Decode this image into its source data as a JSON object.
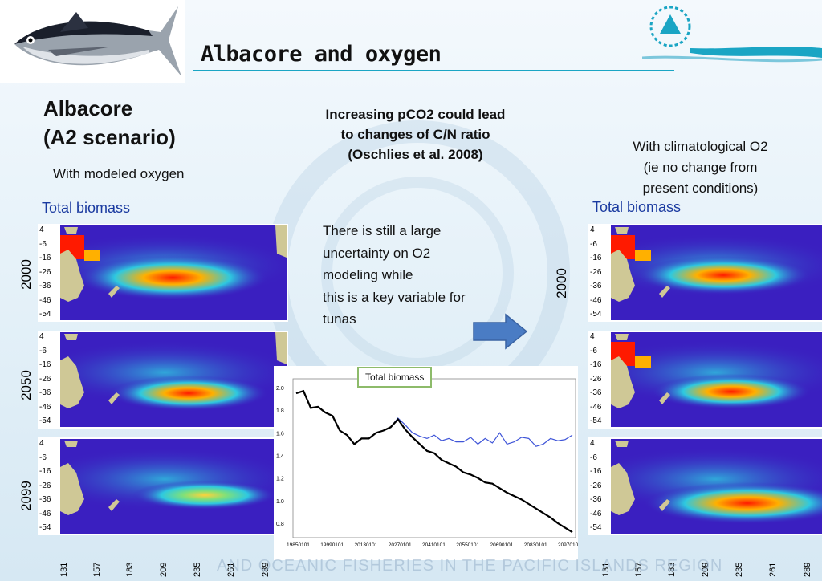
{
  "title": "Albacore and oxygen",
  "left": {
    "heading_line1": "Albacore",
    "heading_line2": "(A2 scenario)",
    "subtitle": "With modeled oxygen",
    "panel_label": "Total biomass",
    "years": [
      "2000",
      "2050",
      "2099"
    ]
  },
  "center": {
    "note_line1": "Increasing  pCO2 could lead",
    "note_line2": "to changes of C/N ratio",
    "note_line3": "(Oschlies et al. 2008)",
    "uncertainty_line1": "There is still a large",
    "uncertainty_line2": "uncertainty on O2",
    "uncertainty_line3": "modeling while",
    "uncertainty_line4": "this is a key variable for",
    "uncertainty_line5": "tunas"
  },
  "right": {
    "subtitle_line1": "With climatological O2",
    "subtitle_line2": "(ie no change from",
    "subtitle_line3": "present conditions)",
    "panel_label": "Total biomass",
    "years": [
      "2000"
    ]
  },
  "map_axes": {
    "y_ticks": [
      "4",
      "-6",
      "-16",
      "-26",
      "-36",
      "-46",
      "-54"
    ],
    "x_ticks": [
      "131",
      "157",
      "183",
      "209",
      "235",
      "261",
      "289"
    ]
  },
  "footer_text": "AND OCEANIC FISHERIES IN THE PACIFIC ISLANDS REGION",
  "colors": {
    "arrow": "#4a7cc4",
    "land": "#cfc896",
    "ocean_low": "#3a1fc0",
    "series_modeled": "#000000",
    "series_climatological": "#3f55d8"
  },
  "chart_data": {
    "type": "line",
    "legend_box": "Total biomass",
    "ylim": [
      0.7,
      2.05
    ],
    "yticks": [
      "2.0",
      "1.8",
      "1.6",
      "1.4",
      "1.2",
      "1.0",
      "0.8"
    ],
    "xticks": [
      "19850101",
      "19990101",
      "20130101",
      "20270101",
      "20410101",
      "20550101",
      "20690101",
      "20830101",
      "20970101"
    ],
    "x": [
      1985,
      1988,
      1991,
      1994,
      1997,
      2000,
      2003,
      2006,
      2009,
      2012,
      2015,
      2018,
      2021,
      2024,
      2027,
      2030,
      2033,
      2036,
      2039,
      2042,
      2045,
      2048,
      2051,
      2054,
      2057,
      2060,
      2063,
      2066,
      2069,
      2072,
      2075,
      2078,
      2081,
      2084,
      2087,
      2090,
      2093,
      2096,
      2099
    ],
    "series": [
      {
        "color": "#000000",
        "values": [
          1.95,
          1.97,
          1.82,
          1.83,
          1.78,
          1.75,
          1.62,
          1.58,
          1.5,
          1.55,
          1.55,
          1.6,
          1.62,
          1.65,
          1.72,
          1.63,
          1.56,
          1.5,
          1.44,
          1.42,
          1.36,
          1.33,
          1.3,
          1.25,
          1.23,
          1.2,
          1.16,
          1.15,
          1.11,
          1.07,
          1.04,
          1.01,
          0.97,
          0.93,
          0.89,
          0.85,
          0.8,
          0.76,
          0.72
        ]
      },
      {
        "color": "#3f55d8",
        "values": [
          1.95,
          1.97,
          1.82,
          1.83,
          1.78,
          1.75,
          1.62,
          1.58,
          1.5,
          1.55,
          1.55,
          1.6,
          1.62,
          1.65,
          1.73,
          1.67,
          1.6,
          1.57,
          1.55,
          1.58,
          1.53,
          1.55,
          1.52,
          1.52,
          1.56,
          1.5,
          1.55,
          1.51,
          1.6,
          1.5,
          1.52,
          1.56,
          1.55,
          1.48,
          1.5,
          1.55,
          1.53,
          1.54,
          1.58
        ]
      }
    ]
  }
}
